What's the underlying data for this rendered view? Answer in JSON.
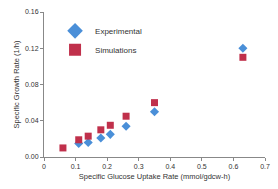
{
  "chart_data": {
    "type": "scatter",
    "x_label": "Specific Glucose Uptake Rate (mmol/gdcw-h)",
    "y_label": "Specific Growth Rate (1/h)",
    "series": [
      {
        "name": "Experimental",
        "color": "#4a8fd8",
        "marker": "diamond",
        "x": [
          0.11,
          0.14,
          0.18,
          0.21,
          0.26,
          0.35,
          0.63
        ],
        "values": [
          0.015,
          0.016,
          0.021,
          0.025,
          0.034,
          0.05,
          0.12
        ]
      },
      {
        "name": "Simulations",
        "color": "#c0304b",
        "marker": "square",
        "x": [
          0.06,
          0.11,
          0.14,
          0.18,
          0.21,
          0.26,
          0.35,
          0.63
        ],
        "values": [
          0.01,
          0.019,
          0.023,
          0.03,
          0.035,
          0.045,
          0.06,
          0.11
        ]
      }
    ],
    "xlim": [
      0,
      0.7
    ],
    "xticks": [
      0,
      0.1,
      0.2,
      0.3,
      0.4,
      0.5,
      0.6,
      0.7
    ],
    "ylim": [
      0,
      0.16
    ],
    "yticks": [
      {
        "value": 0,
        "label": "0.00"
      },
      {
        "value": 0.04,
        "label": "0.04"
      },
      {
        "value": 0.08,
        "label": "0.08"
      },
      {
        "value": 0.12,
        "label": "0.12"
      },
      {
        "value": 0.16,
        "label": "0.16"
      }
    ],
    "grid": false,
    "legend": "upper left"
  }
}
